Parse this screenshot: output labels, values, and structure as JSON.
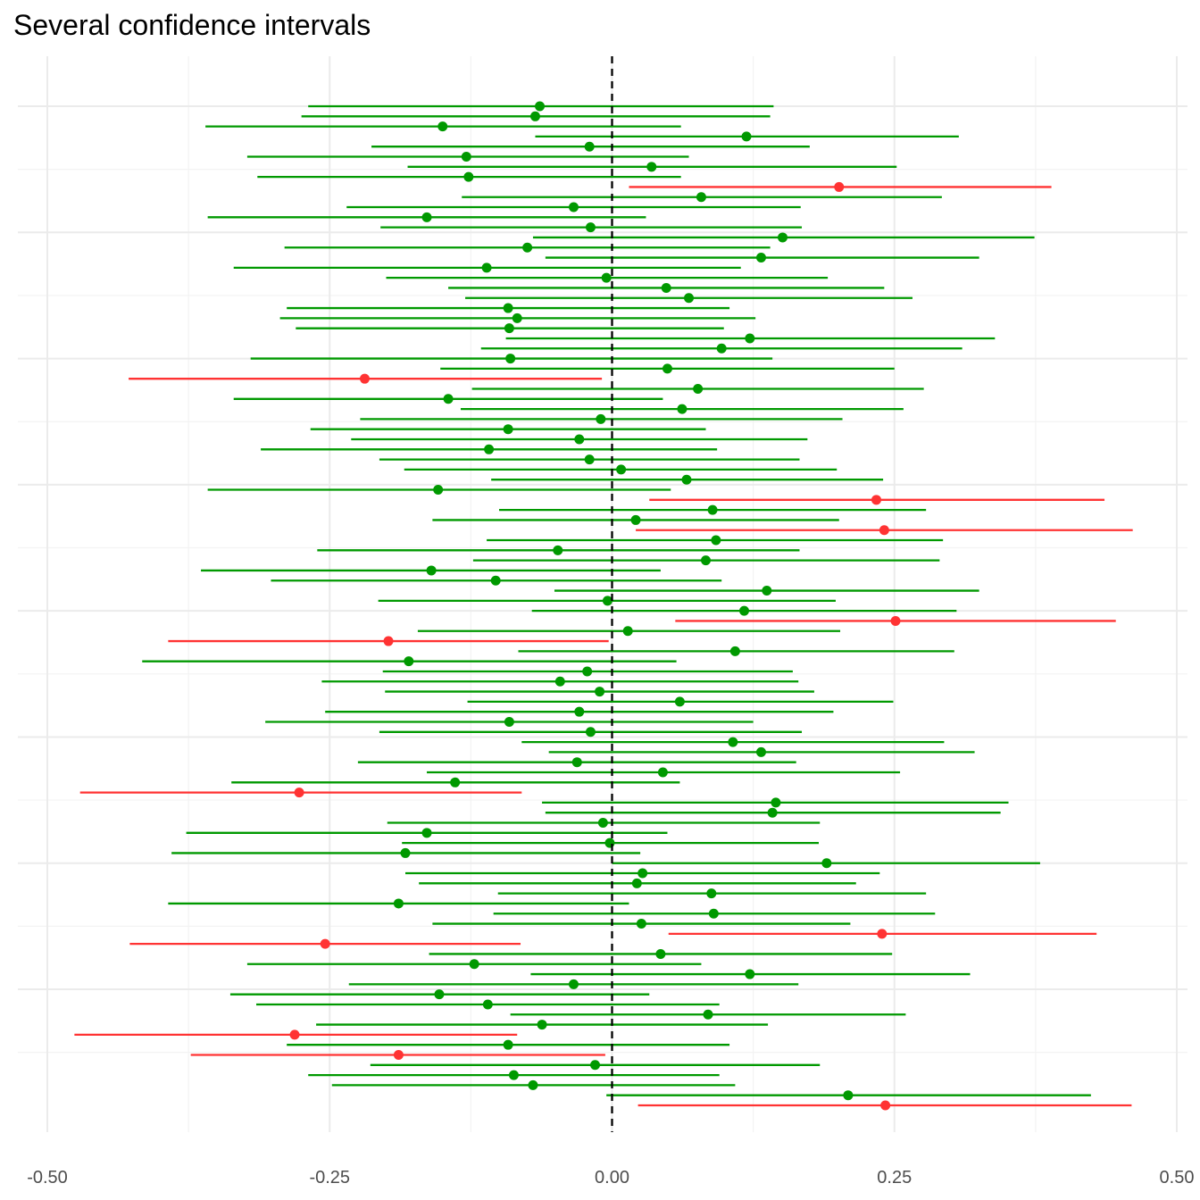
{
  "chart_data": {
    "type": "interval",
    "title": "Several confidence intervals",
    "xlabel": "",
    "ylabel": "",
    "xlim": [
      -0.5,
      0.5
    ],
    "x_ticks": [
      "-0.50",
      "-0.25",
      "0.00",
      "0.25",
      "0.50"
    ],
    "reference_line": 0,
    "grid": true,
    "colors": {
      "covers_zero": "#009900",
      "excludes_zero": "#ff3333",
      "reference": "#000000"
    },
    "intervals": [
      {
        "estimate": -0.064,
        "lower": -0.269,
        "upper": 0.143
      },
      {
        "estimate": -0.068,
        "lower": -0.275,
        "upper": 0.14
      },
      {
        "estimate": -0.15,
        "lower": -0.36,
        "upper": 0.061
      },
      {
        "estimate": 0.119,
        "lower": -0.068,
        "upper": 0.307
      },
      {
        "estimate": -0.02,
        "lower": -0.213,
        "upper": 0.175
      },
      {
        "estimate": -0.129,
        "lower": -0.323,
        "upper": 0.068
      },
      {
        "estimate": 0.035,
        "lower": -0.181,
        "upper": 0.252
      },
      {
        "estimate": -0.127,
        "lower": -0.314,
        "upper": 0.061
      },
      {
        "estimate": 0.201,
        "lower": 0.015,
        "upper": 0.389
      },
      {
        "estimate": 0.079,
        "lower": -0.133,
        "upper": 0.292
      },
      {
        "estimate": -0.034,
        "lower": -0.235,
        "upper": 0.167
      },
      {
        "estimate": -0.164,
        "lower": -0.358,
        "upper": 0.03
      },
      {
        "estimate": -0.019,
        "lower": -0.205,
        "upper": 0.168
      },
      {
        "estimate": 0.151,
        "lower": -0.07,
        "upper": 0.374
      },
      {
        "estimate": -0.075,
        "lower": -0.29,
        "upper": 0.14
      },
      {
        "estimate": 0.132,
        "lower": -0.059,
        "upper": 0.325
      },
      {
        "estimate": -0.111,
        "lower": -0.335,
        "upper": 0.114
      },
      {
        "estimate": -0.005,
        "lower": -0.2,
        "upper": 0.191
      },
      {
        "estimate": 0.048,
        "lower": -0.145,
        "upper": 0.241
      },
      {
        "estimate": 0.068,
        "lower": -0.13,
        "upper": 0.266
      },
      {
        "estimate": -0.092,
        "lower": -0.288,
        "upper": 0.104
      },
      {
        "estimate": -0.084,
        "lower": -0.294,
        "upper": 0.127
      },
      {
        "estimate": -0.091,
        "lower": -0.28,
        "upper": 0.099
      },
      {
        "estimate": 0.122,
        "lower": -0.094,
        "upper": 0.339
      },
      {
        "estimate": 0.097,
        "lower": -0.116,
        "upper": 0.31
      },
      {
        "estimate": -0.09,
        "lower": -0.32,
        "upper": 0.142
      },
      {
        "estimate": 0.049,
        "lower": -0.152,
        "upper": 0.25
      },
      {
        "estimate": -0.219,
        "lower": -0.428,
        "upper": -0.009
      },
      {
        "estimate": 0.076,
        "lower": -0.124,
        "upper": 0.276
      },
      {
        "estimate": -0.145,
        "lower": -0.335,
        "upper": 0.045
      },
      {
        "estimate": 0.062,
        "lower": -0.134,
        "upper": 0.258
      },
      {
        "estimate": -0.01,
        "lower": -0.223,
        "upper": 0.204
      },
      {
        "estimate": -0.092,
        "lower": -0.267,
        "upper": 0.083
      },
      {
        "estimate": -0.029,
        "lower": -0.231,
        "upper": 0.173
      },
      {
        "estimate": -0.109,
        "lower": -0.311,
        "upper": 0.093
      },
      {
        "estimate": -0.02,
        "lower": -0.206,
        "upper": 0.166
      },
      {
        "estimate": 0.008,
        "lower": -0.184,
        "upper": 0.199
      },
      {
        "estimate": 0.066,
        "lower": -0.107,
        "upper": 0.24
      },
      {
        "estimate": -0.154,
        "lower": -0.358,
        "upper": 0.052
      },
      {
        "estimate": 0.234,
        "lower": 0.033,
        "upper": 0.436
      },
      {
        "estimate": 0.089,
        "lower": -0.1,
        "upper": 0.278
      },
      {
        "estimate": 0.021,
        "lower": -0.159,
        "upper": 0.201
      },
      {
        "estimate": 0.241,
        "lower": 0.021,
        "upper": 0.461
      },
      {
        "estimate": 0.092,
        "lower": -0.111,
        "upper": 0.293
      },
      {
        "estimate": -0.048,
        "lower": -0.261,
        "upper": 0.166
      },
      {
        "estimate": 0.083,
        "lower": -0.123,
        "upper": 0.29
      },
      {
        "estimate": -0.16,
        "lower": -0.364,
        "upper": 0.043
      },
      {
        "estimate": -0.103,
        "lower": -0.302,
        "upper": 0.097
      },
      {
        "estimate": 0.137,
        "lower": -0.051,
        "upper": 0.325
      },
      {
        "estimate": -0.004,
        "lower": -0.207,
        "upper": 0.198
      },
      {
        "estimate": 0.117,
        "lower": -0.071,
        "upper": 0.305
      },
      {
        "estimate": 0.251,
        "lower": 0.056,
        "upper": 0.446
      },
      {
        "estimate": 0.014,
        "lower": -0.172,
        "upper": 0.202
      },
      {
        "estimate": -0.198,
        "lower": -0.393,
        "upper": -0.003
      },
      {
        "estimate": 0.109,
        "lower": -0.083,
        "upper": 0.303
      },
      {
        "estimate": -0.18,
        "lower": -0.416,
        "upper": 0.057
      },
      {
        "estimate": -0.022,
        "lower": -0.203,
        "upper": 0.16
      },
      {
        "estimate": -0.046,
        "lower": -0.257,
        "upper": 0.165
      },
      {
        "estimate": -0.011,
        "lower": -0.201,
        "upper": 0.179
      },
      {
        "estimate": 0.06,
        "lower": -0.128,
        "upper": 0.249
      },
      {
        "estimate": -0.029,
        "lower": -0.254,
        "upper": 0.196
      },
      {
        "estimate": -0.091,
        "lower": -0.307,
        "upper": 0.125
      },
      {
        "estimate": -0.019,
        "lower": -0.206,
        "upper": 0.168
      },
      {
        "estimate": 0.107,
        "lower": -0.08,
        "upper": 0.294
      },
      {
        "estimate": 0.132,
        "lower": -0.056,
        "upper": 0.321
      },
      {
        "estimate": -0.031,
        "lower": -0.225,
        "upper": 0.163
      },
      {
        "estimate": 0.045,
        "lower": -0.164,
        "upper": 0.255
      },
      {
        "estimate": -0.139,
        "lower": -0.337,
        "upper": 0.06
      },
      {
        "estimate": -0.277,
        "lower": -0.471,
        "upper": -0.08
      },
      {
        "estimate": 0.145,
        "lower": -0.062,
        "upper": 0.351
      },
      {
        "estimate": 0.142,
        "lower": -0.059,
        "upper": 0.344
      },
      {
        "estimate": -0.008,
        "lower": -0.199,
        "upper": 0.184
      },
      {
        "estimate": -0.164,
        "lower": -0.377,
        "upper": 0.049
      },
      {
        "estimate": -0.002,
        "lower": -0.186,
        "upper": 0.183
      },
      {
        "estimate": -0.183,
        "lower": -0.39,
        "upper": 0.025
      },
      {
        "estimate": 0.19,
        "lower": 0.0,
        "upper": 0.379
      },
      {
        "estimate": 0.027,
        "lower": -0.183,
        "upper": 0.237
      },
      {
        "estimate": 0.022,
        "lower": -0.171,
        "upper": 0.216
      },
      {
        "estimate": 0.088,
        "lower": -0.101,
        "upper": 0.278
      },
      {
        "estimate": -0.189,
        "lower": -0.393,
        "upper": 0.015
      },
      {
        "estimate": 0.09,
        "lower": -0.105,
        "upper": 0.286
      },
      {
        "estimate": 0.026,
        "lower": -0.159,
        "upper": 0.211
      },
      {
        "estimate": 0.239,
        "lower": 0.05,
        "upper": 0.429
      },
      {
        "estimate": -0.254,
        "lower": -0.427,
        "upper": -0.081
      },
      {
        "estimate": 0.043,
        "lower": -0.162,
        "upper": 0.248
      },
      {
        "estimate": -0.122,
        "lower": -0.323,
        "upper": 0.079
      },
      {
        "estimate": 0.122,
        "lower": -0.072,
        "upper": 0.317
      },
      {
        "estimate": -0.034,
        "lower": -0.233,
        "upper": 0.165
      },
      {
        "estimate": -0.153,
        "lower": -0.338,
        "upper": 0.033
      },
      {
        "estimate": -0.11,
        "lower": -0.315,
        "upper": 0.095
      },
      {
        "estimate": 0.085,
        "lower": -0.09,
        "upper": 0.26
      },
      {
        "estimate": -0.062,
        "lower": -0.262,
        "upper": 0.138
      },
      {
        "estimate": -0.281,
        "lower": -0.476,
        "upper": -0.084
      },
      {
        "estimate": -0.092,
        "lower": -0.288,
        "upper": 0.104
      },
      {
        "estimate": -0.189,
        "lower": -0.373,
        "upper": -0.006
      },
      {
        "estimate": -0.015,
        "lower": -0.214,
        "upper": 0.184
      },
      {
        "estimate": -0.087,
        "lower": -0.269,
        "upper": 0.095
      },
      {
        "estimate": -0.07,
        "lower": -0.248,
        "upper": 0.109
      },
      {
        "estimate": 0.209,
        "lower": -0.005,
        "upper": 0.424
      },
      {
        "estimate": 0.242,
        "lower": 0.023,
        "upper": 0.46
      }
    ]
  }
}
